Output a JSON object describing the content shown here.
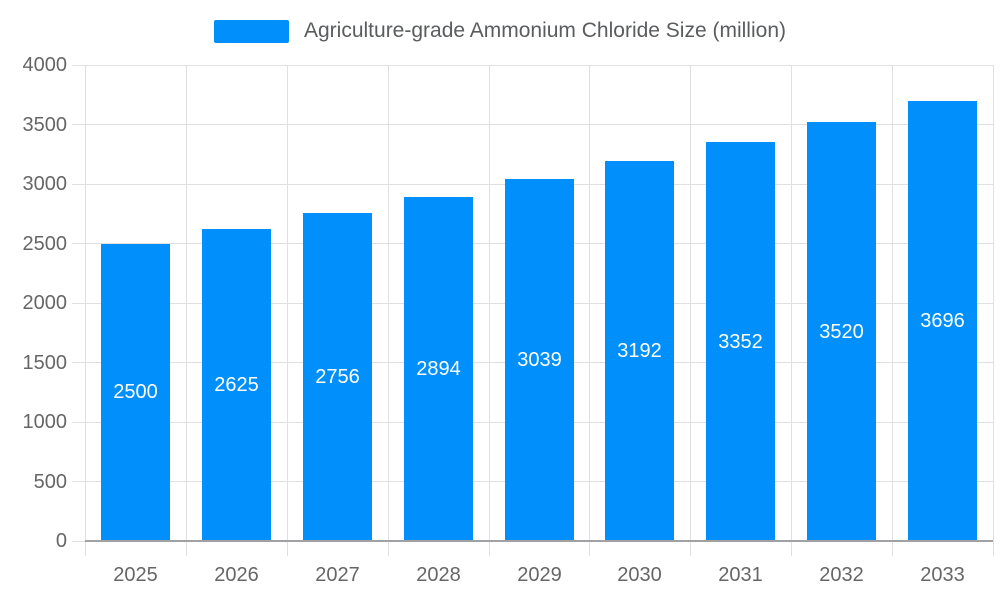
{
  "chart_data": {
    "type": "bar",
    "title": "Agriculture-grade Ammonium Chloride Size (million)",
    "categories": [
      "2025",
      "2026",
      "2027",
      "2028",
      "2029",
      "2030",
      "2031",
      "2032",
      "2033"
    ],
    "values": [
      2500,
      2625,
      2756,
      2894,
      3039,
      3192,
      3352,
      3520,
      3696
    ],
    "xlabel": "",
    "ylabel": "",
    "ylim": [
      0,
      4000
    ],
    "yticks": [
      0,
      500,
      1000,
      1500,
      2000,
      2500,
      3000,
      3500,
      4000
    ],
    "grid": true,
    "legend_position": "top",
    "bar_labels_inside": true,
    "colors": {
      "bar": "#008FFB",
      "bar_label": "#FFFFFF",
      "grid_line": "#E0E0E0",
      "axis_line": "#9FA1A4",
      "tick_label": "#666666",
      "legend_text": "#5A5C5E"
    }
  }
}
